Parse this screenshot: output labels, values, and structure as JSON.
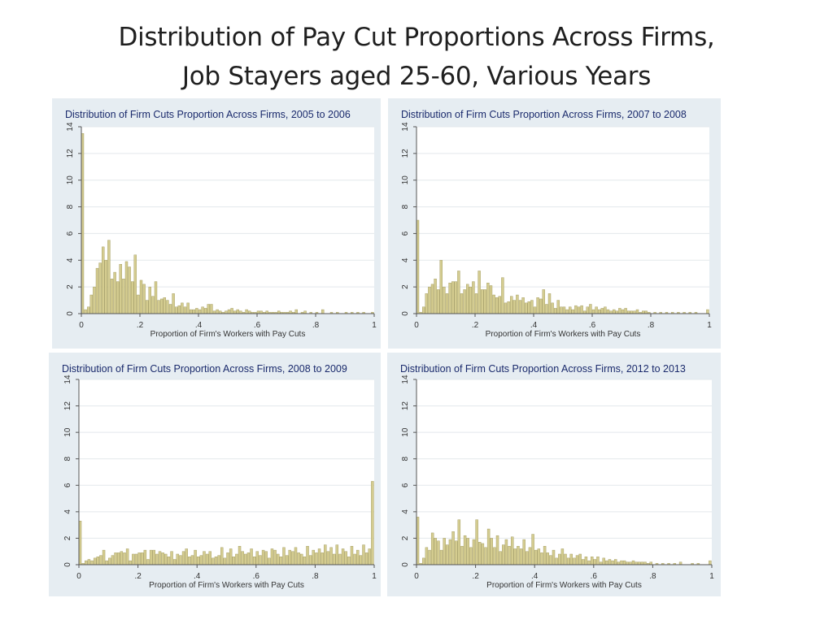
{
  "slide": {
    "title_line1": "Distribution of Pay Cut Proportions Across Firms,",
    "title_line2": "Job Stayers aged 25-60, Various Years"
  },
  "colors": {
    "panel_bg": "#e6edf2",
    "plot_bg": "#ffffff",
    "bar_fill": "#d4cc90",
    "bar_edge": "#9c9458",
    "grid": "#e3e8ec",
    "axis": "#555555",
    "title_text": "#1a2a6c"
  },
  "chart_data": [
    {
      "type": "bar",
      "title": "Distribution of Firm Cuts Proportion Across Firms, 2005 to 2006",
      "xlabel": "Proportion of Firm's Workers with Pay Cuts",
      "ylabel": "",
      "xlim": [
        0,
        1
      ],
      "ylim": [
        0,
        14
      ],
      "xticks": [
        0,
        0.2,
        0.4,
        0.6,
        0.8,
        1
      ],
      "xtick_labels": [
        "0",
        ".2",
        ".4",
        ".6",
        ".8",
        "1"
      ],
      "yticks": [
        0,
        2,
        4,
        6,
        8,
        10,
        12,
        14
      ],
      "ytick_labels": [
        "0",
        "2",
        "4",
        "6",
        "8",
        "10",
        "12",
        "14"
      ],
      "grid": true,
      "bin_width": 0.01,
      "x": [
        0.005,
        0.015,
        0.025,
        0.035,
        0.045,
        0.055,
        0.065,
        0.075,
        0.085,
        0.095,
        0.105,
        0.115,
        0.125,
        0.135,
        0.145,
        0.155,
        0.165,
        0.175,
        0.185,
        0.195,
        0.205,
        0.215,
        0.225,
        0.235,
        0.245,
        0.255,
        0.265,
        0.275,
        0.285,
        0.295,
        0.305,
        0.315,
        0.325,
        0.335,
        0.345,
        0.355,
        0.365,
        0.375,
        0.385,
        0.395,
        0.405,
        0.415,
        0.425,
        0.435,
        0.445,
        0.455,
        0.465,
        0.475,
        0.485,
        0.495,
        0.505,
        0.515,
        0.525,
        0.535,
        0.545,
        0.555,
        0.565,
        0.575,
        0.585,
        0.595,
        0.605,
        0.615,
        0.625,
        0.635,
        0.645,
        0.655,
        0.665,
        0.675,
        0.685,
        0.695,
        0.705,
        0.715,
        0.725,
        0.735,
        0.755,
        0.765,
        0.785,
        0.805,
        0.825,
        0.855,
        0.875,
        0.905,
        0.925,
        0.945,
        0.965,
        0.995
      ],
      "values": [
        13.5,
        0.3,
        0.5,
        1.4,
        2.0,
        3.4,
        3.8,
        5.0,
        4.0,
        5.5,
        2.6,
        3.1,
        2.4,
        3.7,
        2.6,
        3.9,
        3.5,
        2.4,
        4.4,
        1.4,
        2.5,
        2.2,
        1.0,
        2.0,
        1.3,
        2.4,
        1.0,
        1.1,
        1.2,
        1.0,
        0.7,
        1.5,
        0.5,
        0.6,
        0.8,
        0.5,
        0.8,
        0.3,
        0.3,
        0.4,
        0.3,
        0.5,
        0.4,
        0.7,
        0.7,
        0.2,
        0.3,
        0.2,
        0.1,
        0.2,
        0.3,
        0.4,
        0.2,
        0.3,
        0.2,
        0.1,
        0.3,
        0.2,
        0.1,
        0.1,
        0.2,
        0.2,
        0.1,
        0.2,
        0.1,
        0.1,
        0.1,
        0.2,
        0.1,
        0.1,
        0.1,
        0.2,
        0.1,
        0.3,
        0.1,
        0.2,
        0.1,
        0.1,
        0.3,
        0.1,
        0.1,
        0.1,
        0.1,
        0.1,
        0.1,
        0.1
      ]
    },
    {
      "type": "bar",
      "title": "Distribution of Firm Cuts Proportion Across Firms, 2007 to 2008",
      "xlabel": "Proportion of Firm's Workers with Pay Cuts",
      "ylabel": "",
      "xlim": [
        0,
        1
      ],
      "ylim": [
        0,
        14
      ],
      "xticks": [
        0,
        0.2,
        0.4,
        0.6,
        0.8,
        1
      ],
      "xtick_labels": [
        "0",
        ".2",
        ".4",
        ".6",
        ".8",
        "1"
      ],
      "yticks": [
        0,
        2,
        4,
        6,
        8,
        10,
        12,
        14
      ],
      "ytick_labels": [
        "0",
        "2",
        "4",
        "6",
        "8",
        "10",
        "12",
        "14"
      ],
      "grid": true,
      "bin_width": 0.01,
      "x": [
        0.005,
        0.015,
        0.025,
        0.035,
        0.045,
        0.055,
        0.065,
        0.075,
        0.085,
        0.095,
        0.105,
        0.115,
        0.125,
        0.135,
        0.145,
        0.155,
        0.165,
        0.175,
        0.185,
        0.195,
        0.205,
        0.215,
        0.225,
        0.235,
        0.245,
        0.255,
        0.265,
        0.275,
        0.285,
        0.295,
        0.305,
        0.315,
        0.325,
        0.335,
        0.345,
        0.355,
        0.365,
        0.375,
        0.385,
        0.395,
        0.405,
        0.415,
        0.425,
        0.435,
        0.445,
        0.455,
        0.465,
        0.475,
        0.485,
        0.495,
        0.505,
        0.515,
        0.525,
        0.535,
        0.545,
        0.555,
        0.565,
        0.575,
        0.585,
        0.595,
        0.605,
        0.615,
        0.625,
        0.635,
        0.645,
        0.655,
        0.665,
        0.675,
        0.685,
        0.695,
        0.705,
        0.715,
        0.725,
        0.735,
        0.745,
        0.755,
        0.765,
        0.775,
        0.785,
        0.795,
        0.815,
        0.835,
        0.855,
        0.875,
        0.895,
        0.915,
        0.935,
        0.955,
        0.995
      ],
      "values": [
        7.0,
        0.1,
        0.5,
        1.5,
        2.0,
        2.2,
        2.6,
        1.8,
        4.0,
        2.0,
        1.5,
        2.3,
        2.4,
        2.4,
        3.2,
        1.5,
        1.8,
        2.2,
        2.0,
        2.4,
        1.5,
        3.2,
        1.8,
        1.8,
        2.3,
        2.1,
        1.4,
        1.2,
        1.3,
        2.7,
        0.8,
        0.9,
        1.3,
        1.0,
        1.4,
        1.0,
        1.2,
        0.8,
        0.9,
        1.0,
        0.5,
        1.2,
        1.1,
        1.8,
        0.7,
        1.5,
        0.8,
        0.4,
        1.0,
        0.5,
        0.5,
        0.3,
        0.5,
        0.3,
        0.6,
        0.5,
        0.6,
        0.2,
        0.5,
        0.7,
        0.3,
        0.5,
        0.3,
        0.4,
        0.5,
        0.3,
        0.2,
        0.3,
        0.2,
        0.4,
        0.3,
        0.4,
        0.2,
        0.2,
        0.2,
        0.3,
        0.1,
        0.2,
        0.2,
        0.1,
        0.1,
        0.1,
        0.1,
        0.1,
        0.1,
        0.1,
        0.1,
        0.1,
        0.3
      ]
    },
    {
      "type": "bar",
      "title": "Distribution of Firm Cuts Proportion Across Firms, 2008 to 2009",
      "xlabel": "Proportion of Firm's Workers with Pay Cuts",
      "ylabel": "",
      "xlim": [
        0,
        1
      ],
      "ylim": [
        0,
        14
      ],
      "xticks": [
        0,
        0.2,
        0.4,
        0.6,
        0.8,
        1
      ],
      "xtick_labels": [
        "0",
        ".2",
        ".4",
        ".6",
        ".8",
        "1"
      ],
      "yticks": [
        0,
        2,
        4,
        6,
        8,
        10,
        12,
        14
      ],
      "ytick_labels": [
        "0",
        "2",
        "4",
        "6",
        "8",
        "10",
        "12",
        "14"
      ],
      "grid": true,
      "bin_width": 0.01,
      "x": [
        0.005,
        0.015,
        0.025,
        0.035,
        0.045,
        0.055,
        0.065,
        0.075,
        0.085,
        0.095,
        0.105,
        0.115,
        0.125,
        0.135,
        0.145,
        0.155,
        0.165,
        0.175,
        0.185,
        0.195,
        0.205,
        0.215,
        0.225,
        0.235,
        0.245,
        0.255,
        0.265,
        0.275,
        0.285,
        0.295,
        0.305,
        0.315,
        0.325,
        0.335,
        0.345,
        0.355,
        0.365,
        0.375,
        0.385,
        0.395,
        0.405,
        0.415,
        0.425,
        0.435,
        0.445,
        0.455,
        0.465,
        0.475,
        0.485,
        0.495,
        0.505,
        0.515,
        0.525,
        0.535,
        0.545,
        0.555,
        0.565,
        0.575,
        0.585,
        0.595,
        0.605,
        0.615,
        0.625,
        0.635,
        0.645,
        0.655,
        0.665,
        0.675,
        0.685,
        0.695,
        0.705,
        0.715,
        0.725,
        0.735,
        0.745,
        0.755,
        0.765,
        0.775,
        0.785,
        0.795,
        0.805,
        0.815,
        0.825,
        0.835,
        0.845,
        0.855,
        0.865,
        0.875,
        0.885,
        0.895,
        0.905,
        0.915,
        0.925,
        0.935,
        0.945,
        0.955,
        0.965,
        0.975,
        0.985,
        0.995
      ],
      "values": [
        3.3,
        0.1,
        0.3,
        0.4,
        0.3,
        0.5,
        0.6,
        0.7,
        1.1,
        0.3,
        0.5,
        0.7,
        0.9,
        0.9,
        1.0,
        0.9,
        1.2,
        0.3,
        0.8,
        0.8,
        0.9,
        0.9,
        1.1,
        0.4,
        1.1,
        1.1,
        0.8,
        1.0,
        0.9,
        0.8,
        0.6,
        1.0,
        0.4,
        0.8,
        0.7,
        1.0,
        1.2,
        0.6,
        0.7,
        1.1,
        0.6,
        0.7,
        1.0,
        0.8,
        1.0,
        0.5,
        0.6,
        0.7,
        1.3,
        0.5,
        0.9,
        1.2,
        0.6,
        0.8,
        1.4,
        1.0,
        0.8,
        0.9,
        1.2,
        0.6,
        1.0,
        0.7,
        1.1,
        1.0,
        0.5,
        1.2,
        1.1,
        0.8,
        0.6,
        1.3,
        0.7,
        1.1,
        1.0,
        1.3,
        0.9,
        0.8,
        0.6,
        1.4,
        0.7,
        1.1,
        0.9,
        1.2,
        0.9,
        1.5,
        1.0,
        1.3,
        0.8,
        1.5,
        0.8,
        1.2,
        1.0,
        0.6,
        1.4,
        0.8,
        1.1,
        0.7,
        1.5,
        0.9,
        1.2,
        6.3
      ]
    },
    {
      "type": "bar",
      "title": "Distribution of Firm Cuts Proportion Across Firms, 2012 to 2013",
      "xlabel": "Proportion of Firm's Workers with Pay Cuts",
      "ylabel": "",
      "xlim": [
        0,
        1
      ],
      "ylim": [
        0,
        14
      ],
      "xticks": [
        0,
        0.2,
        0.4,
        0.6,
        0.8,
        1
      ],
      "xtick_labels": [
        "0",
        ".2",
        ".4",
        ".6",
        ".8",
        "1"
      ],
      "yticks": [
        0,
        2,
        4,
        6,
        8,
        10,
        12,
        14
      ],
      "ytick_labels": [
        "0",
        "2",
        "4",
        "6",
        "8",
        "10",
        "12",
        "14"
      ],
      "grid": true,
      "bin_width": 0.01,
      "x": [
        0.005,
        0.015,
        0.025,
        0.035,
        0.045,
        0.055,
        0.065,
        0.075,
        0.085,
        0.095,
        0.105,
        0.115,
        0.125,
        0.135,
        0.145,
        0.155,
        0.165,
        0.175,
        0.185,
        0.195,
        0.205,
        0.215,
        0.225,
        0.235,
        0.245,
        0.255,
        0.265,
        0.275,
        0.285,
        0.295,
        0.305,
        0.315,
        0.325,
        0.335,
        0.345,
        0.355,
        0.365,
        0.375,
        0.385,
        0.395,
        0.405,
        0.415,
        0.425,
        0.435,
        0.445,
        0.455,
        0.465,
        0.475,
        0.485,
        0.495,
        0.505,
        0.515,
        0.525,
        0.535,
        0.545,
        0.555,
        0.565,
        0.575,
        0.585,
        0.595,
        0.605,
        0.615,
        0.625,
        0.635,
        0.645,
        0.655,
        0.665,
        0.675,
        0.685,
        0.695,
        0.705,
        0.715,
        0.725,
        0.735,
        0.745,
        0.755,
        0.765,
        0.775,
        0.785,
        0.795,
        0.815,
        0.835,
        0.855,
        0.875,
        0.895,
        0.935,
        0.955,
        0.995
      ],
      "values": [
        3.6,
        0.1,
        0.5,
        1.3,
        1.1,
        2.4,
        2.0,
        1.8,
        1.1,
        2.0,
        1.5,
        1.9,
        2.5,
        1.8,
        3.4,
        1.4,
        2.2,
        2.0,
        1.3,
        1.9,
        3.4,
        1.7,
        1.6,
        1.3,
        2.7,
        2.0,
        1.3,
        2.2,
        1.0,
        1.5,
        1.9,
        1.4,
        2.1,
        1.2,
        1.4,
        1.2,
        1.9,
        1.0,
        1.3,
        2.3,
        1.1,
        1.2,
        0.9,
        1.4,
        0.9,
        0.7,
        1.1,
        0.5,
        0.8,
        1.2,
        0.8,
        0.5,
        0.8,
        0.5,
        0.7,
        0.8,
        0.4,
        0.6,
        0.3,
        0.6,
        0.4,
        0.6,
        0.2,
        0.5,
        0.3,
        0.4,
        0.3,
        0.4,
        0.2,
        0.3,
        0.3,
        0.2,
        0.2,
        0.3,
        0.2,
        0.2,
        0.2,
        0.2,
        0.1,
        0.2,
        0.1,
        0.1,
        0.1,
        0.1,
        0.2,
        0.1,
        0.1,
        0.3
      ]
    }
  ]
}
